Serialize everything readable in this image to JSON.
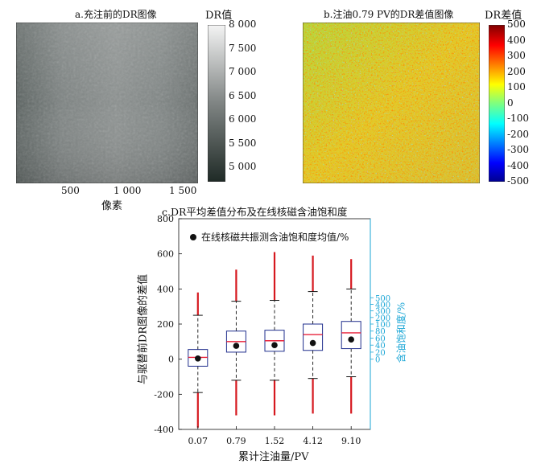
{
  "panel_a": {
    "title": "a.充注前的DR图像",
    "colorbar_title": "DR值",
    "colorbar_ticks": [
      "8 000",
      "7 500",
      "7 000",
      "6 500",
      "6 000",
      "5 500",
      "5 000"
    ],
    "colorbar_values": [
      8000,
      7500,
      7000,
      6500,
      6000,
      5500,
      5000
    ],
    "colorbar_range": [
      4700,
      8000
    ],
    "x_ticks": [
      "500",
      "1 000",
      "1 500"
    ],
    "x_tick_values": [
      500,
      1000,
      1500
    ],
    "x_range": [
      0,
      1800
    ],
    "xlabel": "像素",
    "colors": {
      "low": "#1f2a26",
      "mid": "#7f8483",
      "high": "#f4f4f4"
    }
  },
  "panel_b": {
    "title": "b.注油0.79 PV的DR差值图像",
    "colorbar_title": "DR差值",
    "colorbar_ticks": [
      "500",
      "400",
      "300",
      "200",
      "100",
      "0",
      "-100",
      "-200",
      "-300",
      "-400",
      "-500"
    ],
    "colorbar_values": [
      500,
      400,
      300,
      200,
      100,
      0,
      -100,
      -200,
      -300,
      -400,
      -500
    ],
    "colorbar_range": [
      -500,
      500
    ],
    "colormap": "jet"
  },
  "chart_data": {
    "type": "box",
    "title": "c.DR平均差值分布及在线核磁含油饱和度",
    "xlabel": "累计注油量/PV",
    "ylabel": "与驱替前DR图像的差值",
    "y2label": "含油饱和度/%",
    "categories": [
      "0.07",
      "0.79",
      "1.52",
      "4.12",
      "9.10"
    ],
    "ylim": [
      -400,
      800
    ],
    "yticks": [
      -400,
      -200,
      0,
      200,
      400,
      600,
      800
    ],
    "y2_ticks": [
      0,
      20,
      40,
      60,
      80,
      100,
      200,
      300,
      400,
      500
    ],
    "boxes": [
      {
        "q1": -40,
        "median": 10,
        "q3": 55,
        "whisker_low": -190,
        "whisker_high": 250,
        "outlier_low": -390,
        "outlier_high": 380
      },
      {
        "q1": 40,
        "median": 100,
        "q3": 160,
        "whisker_low": -120,
        "whisker_high": 330,
        "outlier_low": -320,
        "outlier_high": 510
      },
      {
        "q1": 45,
        "median": 105,
        "q3": 165,
        "whisker_low": -120,
        "whisker_high": 335,
        "outlier_low": -320,
        "outlier_high": 610
      },
      {
        "q1": 50,
        "median": 140,
        "q3": 200,
        "whisker_low": -110,
        "whisker_high": 385,
        "outlier_low": -310,
        "outlier_high": 590
      },
      {
        "q1": 60,
        "median": 150,
        "q3": 215,
        "whisker_low": -100,
        "whisker_high": 400,
        "outlier_low": -310,
        "outlier_high": 570
      }
    ],
    "series": [
      {
        "name": "在线核磁共振测含油饱和度均值/%",
        "values": [
          2,
          38,
          40,
          46,
          56
        ],
        "axis": "y2"
      }
    ],
    "legend": "top-left",
    "colors": {
      "box": "#1f2e8c",
      "median": "#e8203a",
      "outlier": "#d6181f",
      "whisker": "#111111",
      "right_axis": "#1aa6d6",
      "marker": "#111111"
    }
  }
}
